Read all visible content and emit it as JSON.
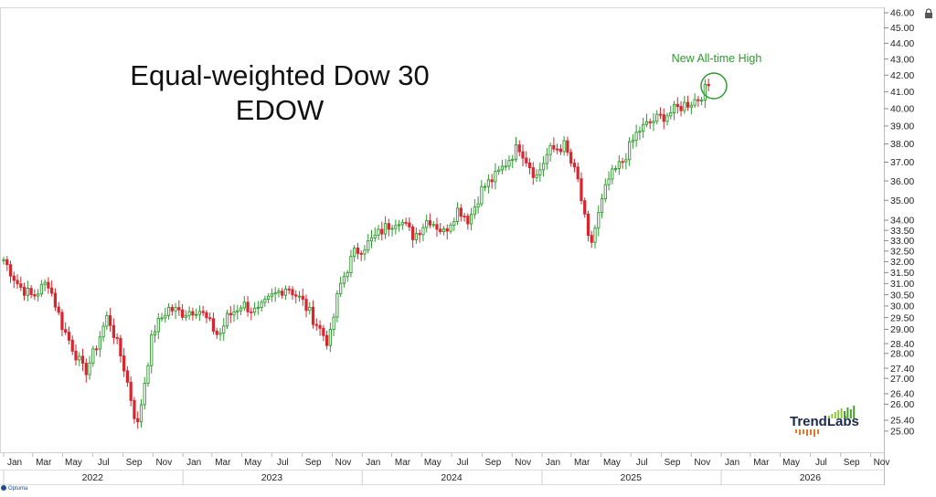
{
  "chart_data": {
    "type": "candlestick",
    "title": [
      "Equal-weighted Dow 30",
      "EDOW"
    ],
    "annotation": "New All-time High",
    "y_scale": "log",
    "ylim": [
      24.6,
      46.0
    ],
    "y_ticks": [
      "46.00",
      "45.00",
      "44.00",
      "43.00",
      "42.00",
      "41.00",
      "40.00",
      "39.00",
      "38.00",
      "37.00",
      "36.00",
      "35.00",
      "34.00",
      "33.50",
      "33.00",
      "32.50",
      "32.00",
      "31.50",
      "31.00",
      "30.50",
      "30.00",
      "29.50",
      "29.00",
      "28.40",
      "28.00",
      "27.40",
      "27.00",
      "26.40",
      "26.00",
      "25.40",
      "25.00"
    ],
    "x_month_labels": [
      "Jan",
      "Mar",
      "May",
      "Jul",
      "Sep",
      "Nov",
      "Jan",
      "Mar",
      "May",
      "Jul",
      "Sep",
      "Nov",
      "Jan",
      "Mar",
      "May",
      "Jul",
      "Sep",
      "Nov",
      "Jan",
      "Mar",
      "May",
      "Jul",
      "Sep",
      "Nov",
      "Jan",
      "Mar",
      "May",
      "Jul",
      "Sep",
      "Nov"
    ],
    "x_year_labels": [
      "2022",
      "2023",
      "2024",
      "2025",
      "2026"
    ],
    "colors": {
      "up": "#2e9a2e",
      "down": "#d7262e",
      "annotation": "#2e9a2e"
    },
    "weekly_close_anchors": [
      {
        "date": "2022-01-01",
        "close": 32.1
      },
      {
        "date": "2022-02-01",
        "close": 30.9
      },
      {
        "date": "2022-03-01",
        "close": 30.4
      },
      {
        "date": "2022-04-01",
        "close": 31.1
      },
      {
        "date": "2022-05-01",
        "close": 29.1
      },
      {
        "date": "2022-06-15",
        "close": 27.2
      },
      {
        "date": "2022-07-01",
        "close": 27.9
      },
      {
        "date": "2022-08-01",
        "close": 29.6
      },
      {
        "date": "2022-09-01",
        "close": 27.6
      },
      {
        "date": "2022-09-30",
        "close": 25.1
      },
      {
        "date": "2022-11-01",
        "close": 28.9
      },
      {
        "date": "2022-12-01",
        "close": 29.9
      },
      {
        "date": "2023-01-01",
        "close": 29.7
      },
      {
        "date": "2023-02-01",
        "close": 29.9
      },
      {
        "date": "2023-03-15",
        "close": 28.7
      },
      {
        "date": "2023-04-01",
        "close": 29.5
      },
      {
        "date": "2023-05-01",
        "close": 30.1
      },
      {
        "date": "2023-06-01",
        "close": 29.7
      },
      {
        "date": "2023-07-01",
        "close": 30.4
      },
      {
        "date": "2023-08-01",
        "close": 30.9
      },
      {
        "date": "2023-09-01",
        "close": 30.2
      },
      {
        "date": "2023-10-25",
        "close": 28.4
      },
      {
        "date": "2023-11-15",
        "close": 30.8
      },
      {
        "date": "2023-12-15",
        "close": 32.4
      },
      {
        "date": "2024-01-15",
        "close": 32.9
      },
      {
        "date": "2024-02-15",
        "close": 33.6
      },
      {
        "date": "2024-03-15",
        "close": 34.1
      },
      {
        "date": "2024-04-15",
        "close": 33.2
      },
      {
        "date": "2024-05-15",
        "close": 34.1
      },
      {
        "date": "2024-06-15",
        "close": 33.4
      },
      {
        "date": "2024-07-15",
        "close": 34.6
      },
      {
        "date": "2024-08-05",
        "close": 34.0
      },
      {
        "date": "2024-09-01",
        "close": 35.6
      },
      {
        "date": "2024-10-01",
        "close": 36.3
      },
      {
        "date": "2024-11-15",
        "close": 37.9
      },
      {
        "date": "2024-12-20",
        "close": 36.2
      },
      {
        "date": "2025-01-15",
        "close": 37.6
      },
      {
        "date": "2025-02-15",
        "close": 37.9
      },
      {
        "date": "2025-03-15",
        "close": 36.0
      },
      {
        "date": "2025-04-08",
        "close": 32.6
      },
      {
        "date": "2025-05-15",
        "close": 36.0
      },
      {
        "date": "2025-06-15",
        "close": 37.1
      },
      {
        "date": "2025-07-15",
        "close": 38.7
      },
      {
        "date": "2025-08-15",
        "close": 39.3
      },
      {
        "date": "2025-09-15",
        "close": 39.7
      },
      {
        "date": "2025-10-15",
        "close": 40.2
      },
      {
        "date": "2025-11-15",
        "close": 40.6
      },
      {
        "date": "2025-12-10",
        "close": 41.5
      }
    ]
  },
  "logo": {
    "text": "TrendLabs",
    "optuma_text": "Optuma"
  }
}
